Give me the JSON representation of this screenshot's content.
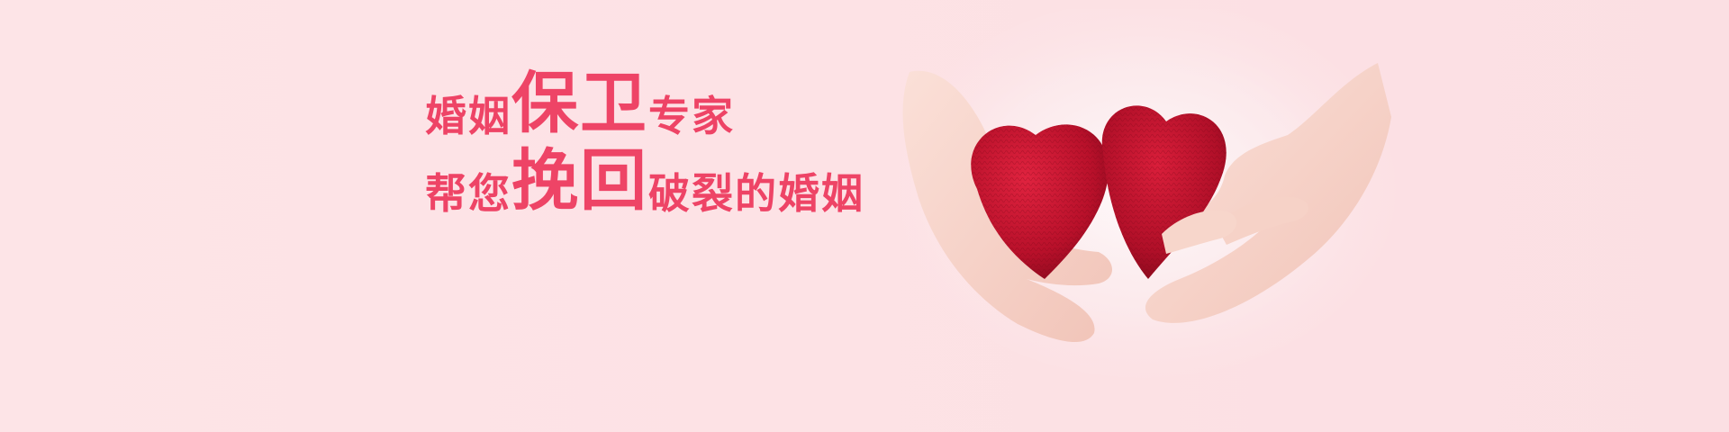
{
  "banner": {
    "line1": {
      "part1": "婚姻",
      "part2": "保卫",
      "part3": "专家"
    },
    "line2": {
      "part1": "帮您",
      "part2": "挽回",
      "part3": "破裂的婚姻"
    }
  },
  "colors": {
    "accent": "#ee4466",
    "background": "#fde3e6",
    "heart": "#c8102e"
  },
  "image": {
    "subject": "hands-holding-knitted-hearts"
  }
}
